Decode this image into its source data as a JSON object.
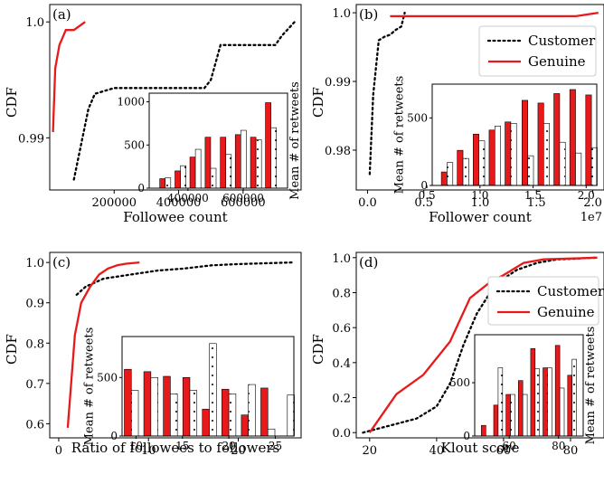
{
  "legend": {
    "customer": "Customer",
    "genuine": "Genuine"
  },
  "colors": {
    "genuine": "#e8191b",
    "customer": "#000000",
    "bar_genuine": "#e8191b",
    "bar_customer": "#ffffff"
  },
  "chart_data": [
    {
      "panel": "(a)",
      "type": "line",
      "xlabel": "Followee count",
      "ylabel": "CDF",
      "xlim": [
        0,
        780000
      ],
      "ylim": [
        0.9855,
        1.0015
      ],
      "xticks": [
        200000,
        400000,
        600000
      ],
      "xtick_labels": [
        "200000",
        "400000",
        "600000"
      ],
      "yticks": [
        0.99,
        1.0
      ],
      "ytick_labels": [
        "0.99",
        "1.0"
      ],
      "legend": false,
      "series": [
        {
          "name": "Genuine",
          "x": [
            10000,
            17000,
            30000,
            50000,
            75000,
            110000
          ],
          "y": [
            0.9905,
            0.996,
            0.998,
            0.9993,
            0.9993,
            1.0
          ]
        },
        {
          "name": "Customer",
          "x": [
            75000,
            120000,
            140000,
            200000,
            480000,
            500000,
            530000,
            560000,
            700000,
            720000,
            760000
          ],
          "y": [
            0.9864,
            0.9925,
            0.9938,
            0.9943,
            0.9943,
            0.995,
            0.998,
            0.998,
            0.998,
            0.9988,
            1.0
          ]
        }
      ],
      "inset": {
        "type": "bar",
        "ylabel": "Mean # of retweets",
        "xlim": [
          260000,
          760000
        ],
        "ylim": [
          0,
          1100
        ],
        "xticks": [
          400000,
          600000
        ],
        "xtick_labels": [
          "400000",
          "600000"
        ],
        "yticks": [
          0,
          500,
          1000
        ],
        "ytick_labels": [
          "0",
          "500",
          "1000"
        ],
        "ylabel_side": "right",
        "categories": [
          318000,
          373000,
          427000,
          482000,
          537000,
          591000,
          646000,
          700000
        ],
        "genuine": [
          110,
          200,
          360,
          590,
          590,
          620,
          590,
          990
        ],
        "customer": [
          120,
          260,
          450,
          230,
          390,
          670,
          560,
          700
        ]
      }
    },
    {
      "panel": "(b)",
      "type": "line",
      "xlabel": "Follower count",
      "ylabel": "CDF",
      "x_offset_label": "1e7",
      "xlim": [
        -0.1,
        2.1
      ],
      "ylim": [
        0.9742,
        1.0012
      ],
      "xticks": [
        0.0,
        0.5,
        1.0,
        1.5,
        2.0
      ],
      "xtick_labels": [
        "0.0",
        "0.5",
        "1.0",
        "1.5",
        "2.0"
      ],
      "yticks": [
        0.98,
        0.99,
        1.0
      ],
      "ytick_labels": [
        "0.98",
        "0.99",
        "1.0"
      ],
      "legend": true,
      "series": [
        {
          "name": "Genuine",
          "x": [
            0.2,
            0.3,
            1.85,
            2.05
          ],
          "y": [
            0.9995,
            0.9995,
            0.9995,
            1.0
          ]
        },
        {
          "name": "Customer",
          "x": [
            0.02,
            0.05,
            0.1,
            0.15,
            0.2,
            0.25,
            0.3,
            0.33
          ],
          "y": [
            0.9765,
            0.988,
            0.996,
            0.9965,
            0.9968,
            0.9975,
            0.998,
            1.0
          ]
        }
      ],
      "inset": {
        "type": "bar",
        "ylabel": "Mean # of retweets",
        "xlim": [
          0.55,
          2.1
        ],
        "ylim": [
          0,
          750
        ],
        "xticks": [
          0.5,
          1.0,
          1.5,
          2.0
        ],
        "xtick_labels": [
          "0.5",
          "1.0",
          "1.5",
          "2.0"
        ],
        "yticks": [
          0,
          500
        ],
        "ytick_labels": [
          "0",
          "500"
        ],
        "ylabel_side": "left",
        "categories": [
          0.69,
          0.84,
          0.99,
          1.14,
          1.29,
          1.45,
          1.6,
          1.75,
          1.9,
          2.05
        ],
        "genuine": [
          100,
          260,
          380,
          410,
          470,
          630,
          610,
          680,
          710,
          670
        ],
        "customer": [
          170,
          200,
          330,
          440,
          460,
          220,
          460,
          320,
          240,
          280
        ]
      }
    },
    {
      "panel": "(c)",
      "type": "line",
      "xlabel": "Ratio of followees to followers",
      "ylabel": "CDF",
      "xlim": [
        -1,
        27
      ],
      "ylim": [
        0.565,
        1.025
      ],
      "xticks": [
        0,
        10,
        20
      ],
      "xtick_labels": [
        "0",
        "10",
        "20"
      ],
      "yticks": [
        0.6,
        0.7,
        0.8,
        0.9,
        1.0
      ],
      "ytick_labels": [
        "0.6",
        "0.7",
        "0.8",
        "0.9",
        "1.0"
      ],
      "legend": false,
      "series": [
        {
          "name": "Genuine",
          "x": [
            1.0,
            1.8,
            2.5,
            3.5,
            4.5,
            5.5,
            6.5,
            7.5,
            9.0
          ],
          "y": [
            0.59,
            0.82,
            0.9,
            0.94,
            0.97,
            0.985,
            0.993,
            0.997,
            1.0
          ]
        },
        {
          "name": "Customer",
          "x": [
            2.0,
            3.0,
            5.0,
            8.0,
            11.0,
            14.0,
            17.0,
            20.0,
            23.0,
            26.0
          ],
          "y": [
            0.92,
            0.94,
            0.96,
            0.97,
            0.98,
            0.985,
            0.993,
            0.996,
            0.998,
            1.0
          ]
        }
      ],
      "inset": {
        "type": "bar",
        "ylabel": "Mean # of retweets",
        "xlim": [
          8.5,
          27
        ],
        "ylim": [
          0,
          850
        ],
        "xticks": [
          10,
          15,
          20,
          25
        ],
        "xtick_labels": [
          "10",
          "15",
          "20",
          "25"
        ],
        "yticks": [
          0,
          500
        ],
        "ytick_labels": [
          "0",
          "500"
        ],
        "ylabel_side": "left",
        "categories": [
          9.5,
          11.6,
          13.7,
          15.8,
          17.9,
          20.0,
          22.1,
          24.2,
          26.3
        ],
        "genuine": [
          570,
          550,
          510,
          500,
          230,
          400,
          180,
          410,
          0
        ],
        "customer": [
          390,
          500,
          360,
          390,
          790,
          360,
          440,
          60,
          350
        ]
      }
    },
    {
      "panel": "(d)",
      "type": "line",
      "xlabel": "Klout score",
      "ylabel": "CDF",
      "xlim": [
        16,
        90
      ],
      "ylim": [
        -0.03,
        1.03
      ],
      "xticks": [
        20,
        40,
        60,
        80
      ],
      "xtick_labels": [
        "20",
        "40",
        "60",
        "80"
      ],
      "yticks": [
        0.0,
        0.2,
        0.4,
        0.6,
        0.8,
        1.0
      ],
      "ytick_labels": [
        "0.0",
        "0.2",
        "0.4",
        "0.6",
        "0.8",
        "1.0"
      ],
      "legend": true,
      "series": [
        {
          "name": "Genuine",
          "x": [
            20,
            28,
            36,
            44,
            50,
            56,
            60,
            66,
            72,
            80,
            88
          ],
          "y": [
            0.0,
            0.22,
            0.33,
            0.52,
            0.77,
            0.86,
            0.9,
            0.97,
            0.99,
            0.995,
            1.0
          ]
        },
        {
          "name": "Customer",
          "x": [
            18,
            24,
            34,
            40,
            44,
            48,
            52,
            56,
            60,
            64,
            70,
            76,
            82,
            88
          ],
          "y": [
            0.0,
            0.03,
            0.08,
            0.15,
            0.28,
            0.5,
            0.68,
            0.8,
            0.88,
            0.93,
            0.97,
            0.99,
            0.995,
            1.0
          ]
        }
      ],
      "inset": {
        "type": "bar",
        "ylabel": "Mean # of retweets",
        "xlim": [
          46,
          90
        ],
        "ylim": [
          0,
          950
        ],
        "xticks": [
          60,
          80
        ],
        "xtick_labels": [
          "60",
          "80"
        ],
        "yticks": [
          0,
          500
        ],
        "ytick_labels": [
          "0",
          "500"
        ],
        "ylabel_side": "right",
        "categories": [
          50.5,
          55.5,
          60.5,
          65.5,
          70.5,
          75.5,
          80.5,
          85.5
        ],
        "genuine": [
          100,
          290,
          390,
          520,
          820,
          640,
          850,
          570
        ],
        "customer": [
          0,
          640,
          390,
          390,
          630,
          640,
          450,
          720
        ]
      }
    }
  ]
}
